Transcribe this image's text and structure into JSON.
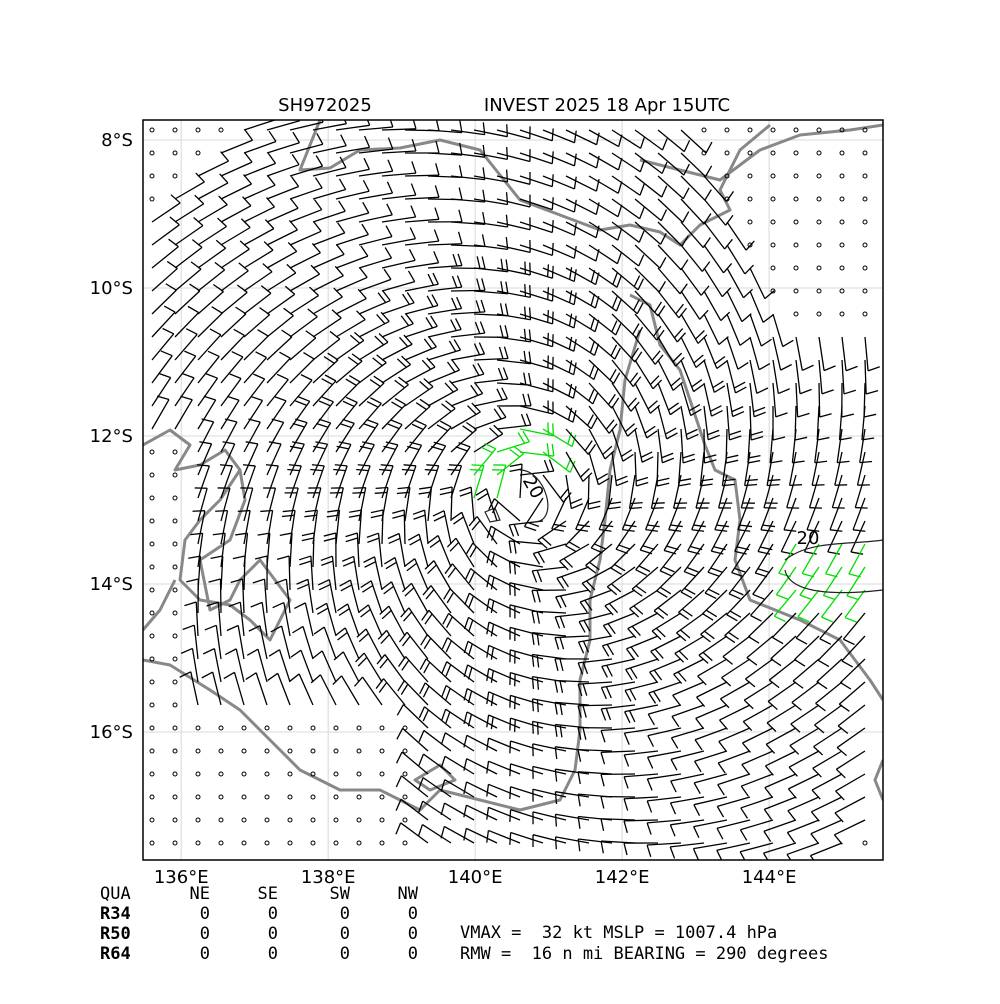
{
  "title_left": "SH972025",
  "title_right": "INVEST 2025 18 Apr 15UTC",
  "map": {
    "xlim": [
      135.48,
      145.55
    ],
    "ylim": [
      -17.73,
      -7.73
    ],
    "xticks": [
      {
        "value": 136,
        "label": "136°E"
      },
      {
        "value": 138,
        "label": "138°E"
      },
      {
        "value": 140,
        "label": "140°E"
      },
      {
        "value": 142,
        "label": "142°E"
      },
      {
        "value": 144,
        "label": "144°E"
      }
    ],
    "yticks": [
      {
        "value": -8,
        "label": "8°S"
      },
      {
        "value": -10,
        "label": "10°S"
      },
      {
        "value": -12,
        "label": "12°S"
      },
      {
        "value": -14,
        "label": "14°S"
      },
      {
        "value": -16,
        "label": "16°S"
      }
    ],
    "contour_labels": [
      "20",
      "20"
    ]
  },
  "radii_table": {
    "header": [
      "QUA",
      "NE",
      "SE",
      "SW",
      "NW"
    ],
    "rows": [
      [
        "R34",
        "0",
        "0",
        "0",
        "0"
      ],
      [
        "R50",
        "0",
        "0",
        "0",
        "0"
      ],
      [
        "R64",
        "0",
        "0",
        "0",
        "0"
      ]
    ]
  },
  "stats": [
    "VMAX =  32 kt MSLP = 1007.4 hPa",
    "RMW =  16 n mi BEARING = 290 degrees"
  ]
}
